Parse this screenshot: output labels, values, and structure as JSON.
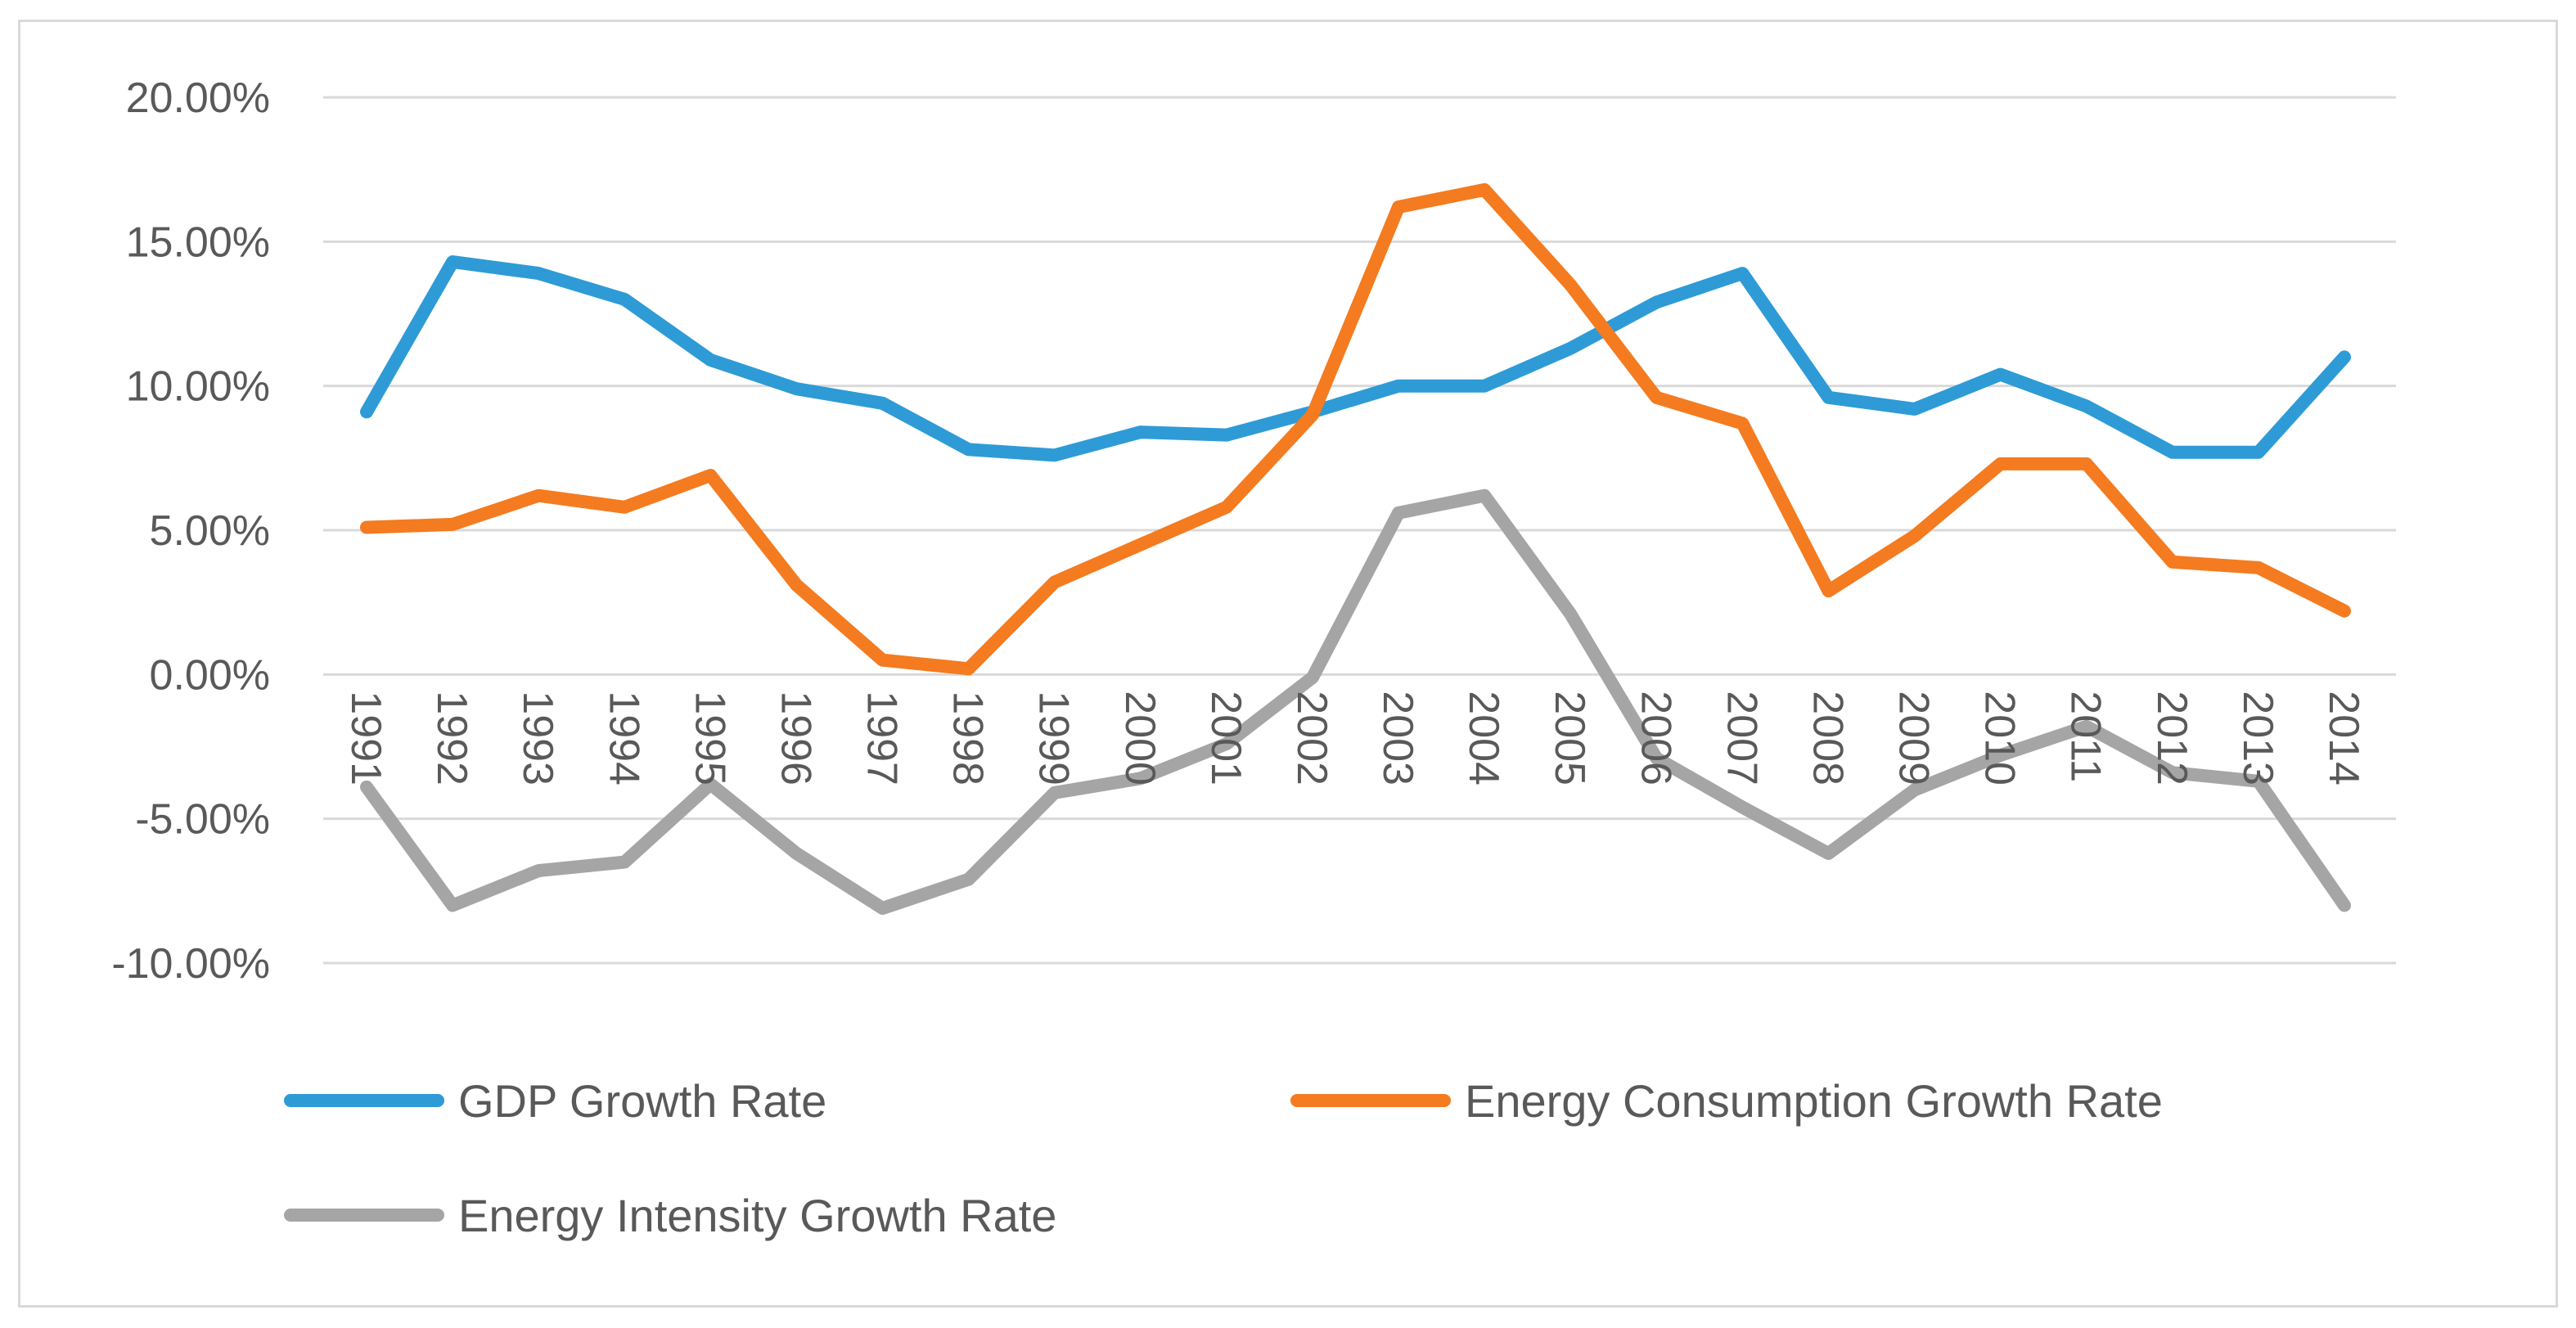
{
  "chart_data": {
    "type": "line",
    "title": "",
    "xlabel": "",
    "ylabel": "",
    "ylim": [
      -0.1,
      0.2
    ],
    "y_ticks": [
      "20.00%",
      "15.00%",
      "10.00%",
      "5.00%",
      "0.00%",
      "-5.00%",
      "-10.00%"
    ],
    "y_tick_values": [
      0.2,
      0.15,
      0.1,
      0.05,
      0.0,
      -0.05,
      -0.1
    ],
    "categories": [
      "1991",
      "1992",
      "1993",
      "1994",
      "1995",
      "1996",
      "1997",
      "1998",
      "1999",
      "2000",
      "2001",
      "2002",
      "2003",
      "2004",
      "2005",
      "2006",
      "2007",
      "2008",
      "2009",
      "2010",
      "2011",
      "2012",
      "2013",
      "2014"
    ],
    "grid": true,
    "legend_position": "bottom",
    "series": [
      {
        "name": "GDP Growth Rate",
        "color": "#2e9bd6",
        "values": [
          0.091,
          0.143,
          0.139,
          0.13,
          0.109,
          0.099,
          0.094,
          0.078,
          0.076,
          0.084,
          0.083,
          0.091,
          0.1,
          0.1,
          0.113,
          0.129,
          0.139,
          0.096,
          0.092,
          0.104,
          0.093,
          0.077,
          0.077,
          0.11
        ]
      },
      {
        "name": "Energy Consumption Growth Rate",
        "color": "#f47b20",
        "values": [
          0.051,
          0.052,
          0.062,
          0.058,
          0.069,
          0.031,
          0.005,
          0.002,
          0.032,
          0.045,
          0.058,
          0.09,
          0.162,
          0.168,
          0.135,
          0.096,
          0.087,
          0.029,
          0.048,
          0.073,
          0.073,
          0.039,
          0.037,
          0.022
        ]
      },
      {
        "name": "Energy Intensity Growth Rate",
        "color": "#a5a5a5",
        "values": [
          -0.039,
          -0.08,
          -0.068,
          -0.065,
          -0.038,
          -0.062,
          -0.081,
          -0.071,
          -0.041,
          -0.036,
          -0.024,
          -0.001,
          0.056,
          0.062,
          0.021,
          -0.029,
          -0.046,
          -0.062,
          -0.04,
          -0.028,
          -0.018,
          -0.034,
          -0.037,
          -0.08
        ]
      }
    ]
  }
}
